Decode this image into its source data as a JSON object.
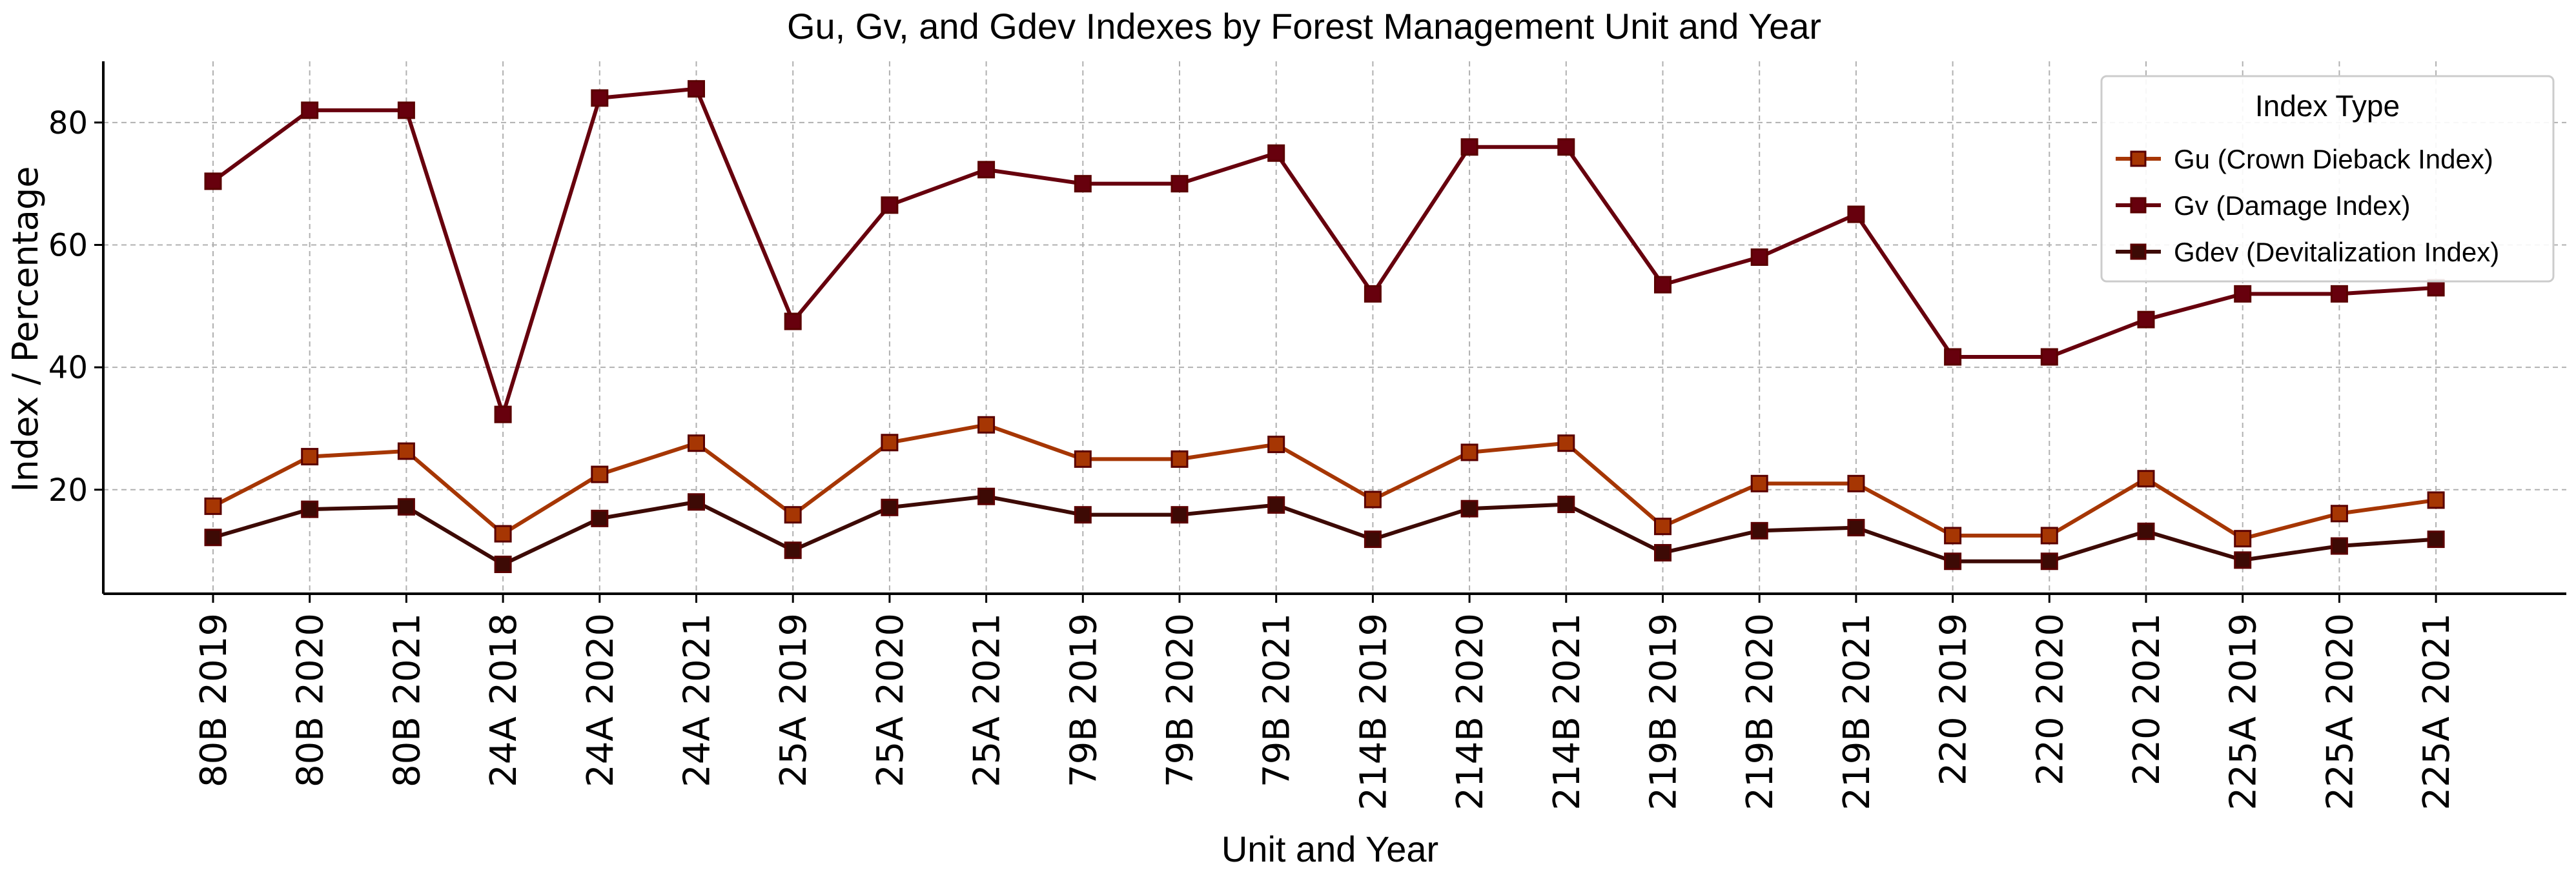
{
  "chart_data": {
    "type": "line",
    "title": "Gu, Gv, and Gdev Indexes by Forest Management Unit and Year",
    "xlabel": "Unit and Year",
    "ylabel": "Index / Percentage",
    "categories": [
      "80B 2019",
      "80B 2020",
      "80B 2021",
      "24A 2018",
      "24A 2020",
      "24A 2021",
      "25A 2019",
      "25A 2020",
      "25A 2021",
      "79B 2019",
      "79B 2020",
      "79B 2021",
      "214B 2019",
      "214B 2020",
      "214B 2021",
      "219B 2019",
      "219B 2020",
      "219B 2021",
      "220 2019",
      "220 2020",
      "220 2021",
      "225A 2019",
      "225A 2020",
      "225A 2021"
    ],
    "ylim": [
      3,
      90
    ],
    "yticks": [
      20,
      40,
      60,
      80
    ],
    "grid": true,
    "legend_title": "Index Type",
    "legend_position": "top-right",
    "series": [
      {
        "name": "Gu (Crown Dieback Index)",
        "color": "#a63603",
        "values": [
          17.3,
          25.4,
          26.3,
          12.8,
          22.5,
          27.6,
          15.9,
          27.7,
          30.6,
          25.0,
          25.0,
          27.4,
          18.4,
          26.1,
          27.6,
          14.0,
          21.0,
          21.0,
          12.5,
          12.5,
          21.8,
          12.0,
          16.1,
          18.3
        ]
      },
      {
        "name": "Gv (Damage Index)",
        "color": "#67000d",
        "values": [
          70.4,
          82.0,
          82.0,
          32.3,
          84.0,
          85.5,
          47.5,
          66.5,
          72.3,
          70.0,
          70.0,
          75.0,
          52.0,
          76.0,
          76.0,
          53.5,
          58.0,
          65.0,
          41.7,
          41.7,
          47.8,
          52.0,
          52.0,
          53.0
        ]
      },
      {
        "name": "Gdev (Devitalization Index)",
        "color": "#3d0a05",
        "values": [
          12.2,
          16.8,
          17.2,
          7.8,
          15.3,
          18.0,
          10.1,
          17.1,
          18.9,
          15.9,
          15.9,
          17.5,
          11.9,
          16.9,
          17.6,
          9.7,
          13.3,
          13.8,
          8.3,
          8.3,
          13.2,
          8.5,
          10.8,
          11.9
        ]
      }
    ]
  }
}
